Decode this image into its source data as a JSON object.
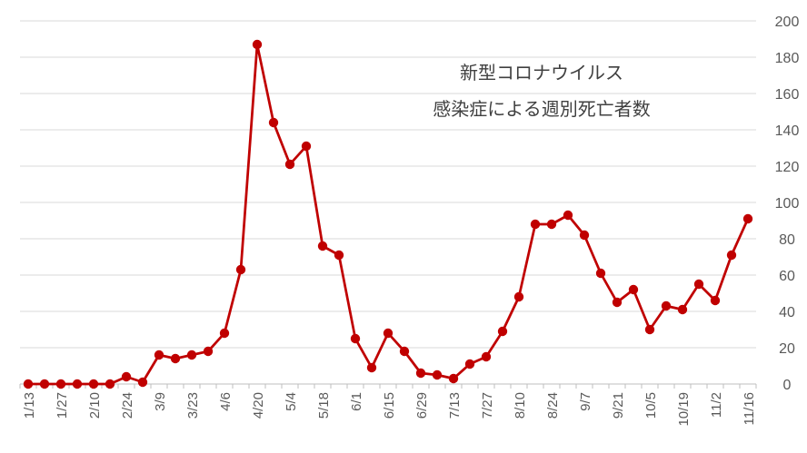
{
  "colors": {
    "series": "#c00000",
    "grid": "#d9d9d9",
    "axis": "#bfbfbf",
    "text": "#595959",
    "annotation": "#404040"
  },
  "chart_data": {
    "type": "line",
    "annotation": [
      "新型コロナウイルス",
      "感染症による週別死亡者数"
    ],
    "xlabel": "",
    "ylabel": "",
    "ylim": [
      0,
      200
    ],
    "yticks": [
      0,
      20,
      40,
      60,
      80,
      100,
      120,
      140,
      160,
      180,
      200
    ],
    "y_axis_side": "right",
    "grid": true,
    "legend": "none",
    "x_tick_labels": [
      "1/13",
      "1/27",
      "2/10",
      "2/24",
      "3/9",
      "3/23",
      "4/6",
      "4/20",
      "5/4",
      "5/18",
      "6/1",
      "6/15",
      "6/29",
      "7/13",
      "7/27",
      "8/10",
      "8/24",
      "9/7",
      "9/21",
      "10/5",
      "10/19",
      "11/2",
      "11/16"
    ],
    "x": [
      "1/13",
      "1/20",
      "1/27",
      "2/3",
      "2/10",
      "2/17",
      "2/24",
      "3/2",
      "3/9",
      "3/16",
      "3/23",
      "3/30",
      "4/6",
      "4/13",
      "4/20",
      "4/27",
      "5/4",
      "5/11",
      "5/18",
      "5/25",
      "6/1",
      "6/8",
      "6/15",
      "6/22",
      "6/29",
      "7/6",
      "7/13",
      "7/20",
      "7/27",
      "8/3",
      "8/10",
      "8/17",
      "8/24",
      "8/31",
      "9/7",
      "9/14",
      "9/21",
      "9/28",
      "10/5",
      "10/12",
      "10/19",
      "10/26",
      "11/2",
      "11/9",
      "11/16"
    ],
    "series": [
      {
        "values": [
          0,
          0,
          0,
          0,
          0,
          0,
          4,
          1,
          16,
          14,
          16,
          18,
          28,
          63,
          187,
          144,
          121,
          131,
          76,
          71,
          25,
          9,
          28,
          18,
          6,
          5,
          3,
          11,
          15,
          29,
          48,
          88,
          88,
          93,
          82,
          61,
          45,
          52,
          30,
          43,
          41,
          55,
          46,
          71,
          91
        ]
      }
    ]
  }
}
